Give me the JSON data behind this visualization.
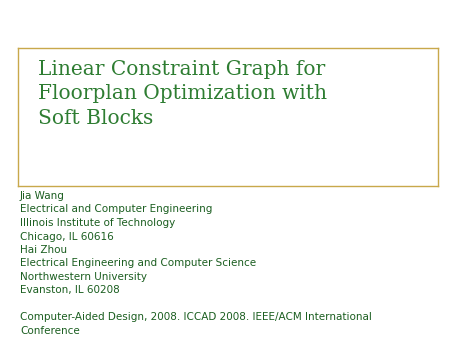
{
  "title": "Linear Constraint Graph for\nFloorplan Optimization with\nSoft Blocks",
  "title_color": "#2E7D32",
  "title_fontsize": 14.5,
  "body_lines": [
    "Jia Wang",
    "Electrical and Computer Engineering",
    "Illinois Institute of Technology",
    "Chicago, IL 60616",
    "Hai Zhou",
    "Electrical Engineering and Computer Science",
    "Northwestern University",
    "Evanston, IL 60208",
    "",
    "Computer-Aided Design, 2008. ICCAD 2008. IEEE/ACM International",
    "Conference"
  ],
  "body_color": "#1B5E20",
  "body_fontsize": 7.5,
  "background_color": "#ffffff",
  "border_color": "#C8A84B",
  "separator_line_color": "#C8A84B"
}
